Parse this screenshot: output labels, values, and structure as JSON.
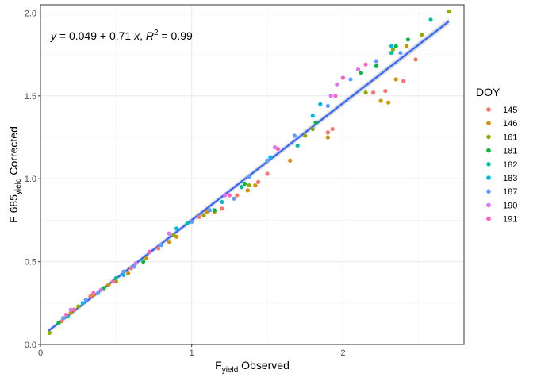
{
  "chart_data": {
    "type": "scatter",
    "xlabel_main": "F",
    "xlabel_sub": "yield",
    "xlabel_rest": " Observed",
    "ylabel_main": "F 685",
    "ylabel_sub": "yield",
    "ylabel_rest": " Corrected",
    "xlim": [
      0,
      2.8
    ],
    "ylim": [
      0,
      2.05
    ],
    "x_ticks": [
      "0",
      "1",
      "2"
    ],
    "x_tick_values": [
      0,
      1,
      2
    ],
    "y_ticks": [
      "0.0",
      "0.5",
      "1.0",
      "1.5",
      "2.0"
    ],
    "y_tick_values": [
      0,
      0.5,
      1.0,
      1.5,
      2.0
    ],
    "grid": true,
    "legend": {
      "title": "DOY",
      "position": "right",
      "entries": [
        "145",
        "146",
        "161",
        "181",
        "182",
        "183",
        "187",
        "190",
        "191"
      ]
    },
    "annotation": {
      "y_var": "y",
      "mid": " = 0.049 + 0.71 ",
      "x_var": "x",
      "comma": ",  ",
      "r_var": "R",
      "r_sup": "2",
      "r_rest": " = 0.99"
    },
    "fit": {
      "type": "line",
      "color": "#3366ff",
      "x": [
        0.05,
        2.7
      ],
      "y": [
        0.08,
        1.95
      ]
    },
    "series": [
      {
        "name": "145",
        "color": "#f8766d",
        "points": [
          [
            0.14,
            0.14
          ],
          [
            0.22,
            0.21
          ],
          [
            0.33,
            0.29
          ],
          [
            0.5,
            0.4
          ],
          [
            0.6,
            0.46
          ],
          [
            0.78,
            0.58
          ],
          [
            1.05,
            0.77
          ],
          [
            1.2,
            0.82
          ],
          [
            1.3,
            0.9
          ],
          [
            1.44,
            0.98
          ],
          [
            1.5,
            1.03
          ],
          [
            1.9,
            1.28
          ],
          [
            1.93,
            1.3
          ],
          [
            2.2,
            1.52
          ],
          [
            2.28,
            1.53
          ],
          [
            2.4,
            1.59
          ],
          [
            2.48,
            1.72
          ]
        ]
      },
      {
        "name": "146",
        "color": "#d39200",
        "points": [
          [
            0.2,
            0.19
          ],
          [
            0.35,
            0.3
          ],
          [
            0.45,
            0.36
          ],
          [
            0.58,
            0.43
          ],
          [
            0.7,
            0.52
          ],
          [
            0.85,
            0.62
          ],
          [
            0.9,
            0.65
          ],
          [
            1.1,
            0.8
          ],
          [
            1.15,
            0.8
          ],
          [
            1.37,
            0.93
          ],
          [
            1.42,
            0.96
          ],
          [
            1.65,
            1.11
          ],
          [
            1.9,
            1.25
          ],
          [
            2.25,
            1.47
          ],
          [
            2.3,
            1.46
          ],
          [
            2.35,
            1.6
          ],
          [
            2.42,
            1.8
          ]
        ]
      },
      {
        "name": "161",
        "color": "#93aa00",
        "points": [
          [
            0.06,
            0.07
          ],
          [
            0.25,
            0.23
          ],
          [
            0.5,
            0.38
          ],
          [
            0.88,
            0.66
          ],
          [
            1.08,
            0.78
          ],
          [
            1.38,
            0.96
          ],
          [
            1.75,
            1.26
          ],
          [
            1.8,
            1.3
          ],
          [
            2.15,
            1.52
          ],
          [
            2.33,
            1.78
          ],
          [
            2.52,
            1.87
          ],
          [
            2.7,
            2.01
          ]
        ]
      },
      {
        "name": "181",
        "color": "#00ba38",
        "points": [
          [
            0.12,
            0.13
          ],
          [
            0.42,
            0.34
          ],
          [
            0.68,
            0.5
          ],
          [
            1.15,
            0.81
          ],
          [
            1.35,
            0.97
          ],
          [
            1.82,
            1.34
          ],
          [
            2.12,
            1.64
          ],
          [
            2.22,
            1.68
          ],
          [
            2.35,
            1.8
          ],
          [
            2.43,
            1.84
          ]
        ]
      },
      {
        "name": "182",
        "color": "#00c19f",
        "points": [
          [
            0.18,
            0.17
          ],
          [
            0.5,
            0.4
          ],
          [
            0.97,
            0.73
          ],
          [
            1.33,
            0.95
          ],
          [
            1.7,
            1.2
          ],
          [
            2.32,
            1.76
          ],
          [
            2.58,
            1.96
          ]
        ]
      },
      {
        "name": "183",
        "color": "#00b9e3",
        "points": [
          [
            0.28,
            0.25
          ],
          [
            0.55,
            0.42
          ],
          [
            0.9,
            0.7
          ],
          [
            1.2,
            0.86
          ],
          [
            1.52,
            1.13
          ],
          [
            1.8,
            1.38
          ],
          [
            1.85,
            1.45
          ],
          [
            2.32,
            1.8
          ]
        ]
      },
      {
        "name": "187",
        "color": "#619cff",
        "points": [
          [
            0.15,
            0.16
          ],
          [
            0.3,
            0.27
          ],
          [
            0.38,
            0.31
          ],
          [
            0.55,
            0.44
          ],
          [
            0.62,
            0.47
          ],
          [
            0.8,
            0.6
          ],
          [
            1.0,
            0.74
          ],
          [
            1.12,
            0.81
          ],
          [
            1.28,
            0.88
          ],
          [
            1.38,
            1.01
          ],
          [
            1.5,
            1.11
          ],
          [
            1.68,
            1.26
          ],
          [
            1.9,
            1.44
          ],
          [
            2.05,
            1.6
          ],
          [
            2.22,
            1.71
          ],
          [
            2.38,
            1.76
          ]
        ]
      },
      {
        "name": "190",
        "color": "#db72fb",
        "points": [
          [
            0.2,
            0.21
          ],
          [
            0.4,
            0.33
          ],
          [
            0.63,
            0.49
          ],
          [
            0.85,
            0.67
          ],
          [
            1.22,
            0.9
          ],
          [
            1.55,
            1.19
          ],
          [
            1.92,
            1.5
          ],
          [
            1.96,
            1.57
          ],
          [
            2.1,
            1.66
          ]
        ]
      },
      {
        "name": "191",
        "color": "#ff61c3",
        "points": [
          [
            0.17,
            0.18
          ],
          [
            0.35,
            0.31
          ],
          [
            0.48,
            0.38
          ],
          [
            0.72,
            0.56
          ],
          [
            1.25,
            0.9
          ],
          [
            1.57,
            1.18
          ],
          [
            1.95,
            1.5
          ],
          [
            2.0,
            1.61
          ],
          [
            2.15,
            1.69
          ]
        ]
      }
    ]
  }
}
